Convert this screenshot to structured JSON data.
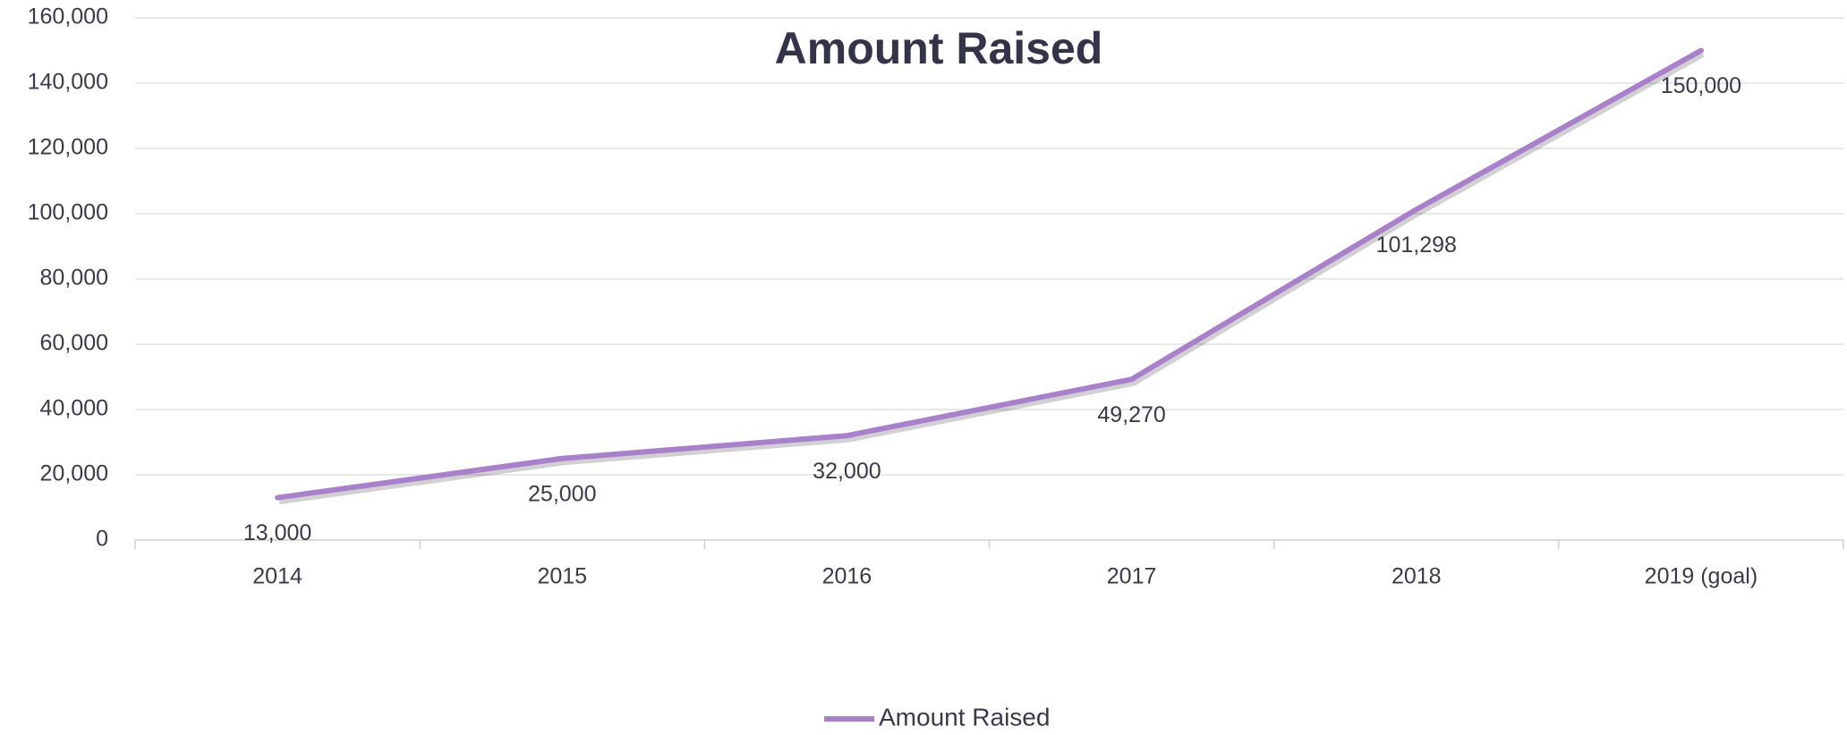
{
  "chart_data": {
    "type": "line",
    "title": "Amount Raised",
    "categories": [
      "2014",
      "2015",
      "2016",
      "2017",
      "2018",
      "2019 (goal)"
    ],
    "series": [
      {
        "name": "Amount Raised",
        "color": "#a980cc",
        "values": [
          13000,
          25000,
          32000,
          49270,
          101298,
          150000
        ],
        "value_labels": [
          "13,000",
          "25,000",
          "32,000",
          "49,270",
          "101,298",
          "150,000"
        ]
      }
    ],
    "ylim": [
      0,
      160000
    ],
    "yticks": [
      0,
      {
        "value": 20000,
        "label": "20,000"
      },
      {
        "value": 40000,
        "label": "40,000"
      },
      {
        "value": 60000,
        "label": "60,000"
      },
      {
        "value": 80000,
        "label": "80,000"
      },
      {
        "value": 100000,
        "label": "100,000"
      },
      {
        "value": 120000,
        "label": "120,000"
      },
      {
        "value": 140000,
        "label": "140,000"
      },
      {
        "value": 160000,
        "label": "160,000"
      }
    ],
    "grid": true,
    "legend": "bottom"
  }
}
